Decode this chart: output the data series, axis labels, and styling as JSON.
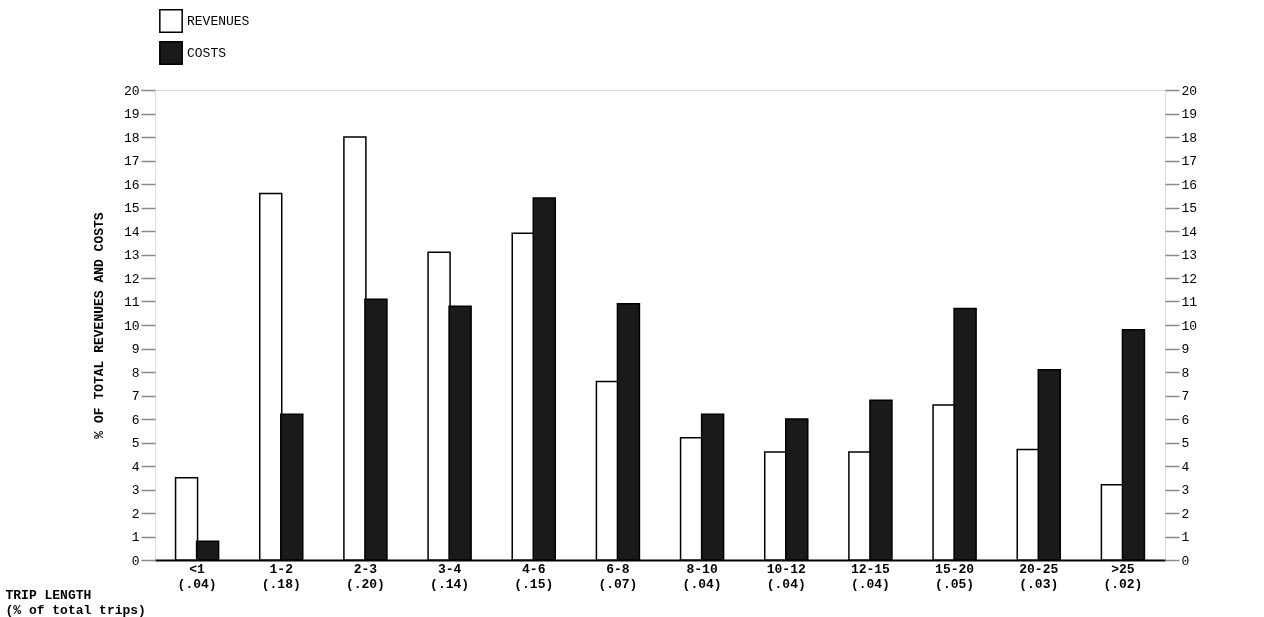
{
  "chart_data": {
    "type": "bar",
    "ylabel": "% OF TOTAL REVENUES AND COSTS",
    "xlabel": "TRIP LENGTH\n(% of total trips)",
    "categories": [
      "<1\n(.04)",
      "1-2\n(.18)",
      "2-3\n(.20)",
      "3-4\n(.14)",
      "4-6\n(.15)",
      "6-8\n(.07)",
      "8-10\n(.04)",
      "10-12\n(.04)",
      "12-15\n(.04)",
      "15-20\n(.05)",
      "20-25\n(.03)",
      ">25\n(.02)"
    ],
    "series": [
      {
        "name": "REVENUES",
        "color": "#ffffff",
        "values": [
          3.5,
          15.6,
          18.0,
          13.1,
          13.9,
          7.6,
          5.2,
          4.6,
          4.6,
          6.6,
          4.7,
          3.2
        ]
      },
      {
        "name": "COSTS",
        "color": "#1a1a1a",
        "values": [
          0.8,
          6.2,
          11.1,
          10.8,
          15.4,
          10.9,
          6.2,
          6.0,
          6.8,
          10.7,
          8.1,
          9.8
        ]
      }
    ],
    "ylim": [
      0,
      20
    ],
    "yticks": [
      0,
      1,
      2,
      3,
      4,
      5,
      6,
      7,
      8,
      9,
      10,
      11,
      12,
      13,
      14,
      15,
      16,
      17,
      18,
      19,
      20
    ],
    "y2lim": [
      0,
      20
    ],
    "y2ticks": [
      0,
      1,
      2,
      3,
      4,
      5,
      6,
      7,
      8,
      9,
      10,
      11,
      12,
      13,
      14,
      15,
      16,
      17,
      18,
      19,
      20
    ],
    "grid": false,
    "legend": "top"
  }
}
